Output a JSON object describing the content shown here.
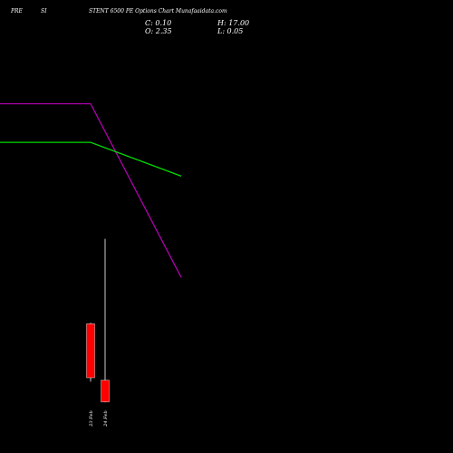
{
  "header": {
    "title_parts": [
      "PRE",
      "SI",
      "STENT 6500  PE Options Chart Munafaaidata.com"
    ]
  },
  "ohlc": {
    "close_label": "C: 0.10",
    "open_label": "O: 2.35",
    "high_label": "H: 17.00",
    "low_label": "L: 0.05"
  },
  "colors": {
    "background": "#000000",
    "line_magenta": "#b000b0",
    "line_green": "#00dd00",
    "candle_down": "#ff0000",
    "wick": "#ffffff",
    "text": "#ffffff"
  },
  "chart_data": {
    "type": "candlestick",
    "categories": [
      "23 Feb",
      "24 Feb"
    ],
    "candles": [
      {
        "date": "23 Feb",
        "open": 8.2,
        "high": 8.3,
        "low": 2.2,
        "close": 2.6
      },
      {
        "date": "24 Feb",
        "open": 2.35,
        "high": 17.0,
        "low": 0.05,
        "close": 0.1
      }
    ],
    "overlay_lines": [
      {
        "color": "magenta",
        "points": [
          [
            0,
            31.0
          ],
          [
            1,
            31.0
          ],
          [
            2,
            13.0
          ]
        ]
      },
      {
        "color": "green",
        "points": [
          [
            0,
            27.0
          ],
          [
            1,
            27.0
          ],
          [
            2,
            23.5
          ]
        ]
      }
    ],
    "ylim": [
      -0.5,
      38.0
    ],
    "grid": false,
    "legend": "none"
  }
}
